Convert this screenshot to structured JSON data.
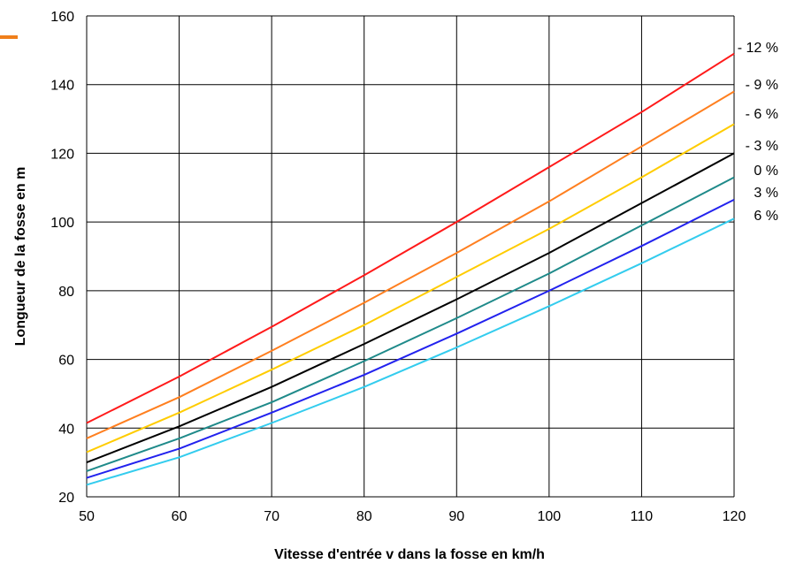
{
  "chart_data": {
    "type": "line",
    "title": "",
    "xlabel": "Vitesse d'entrée v dans la fosse en km/h",
    "ylabel": "Longueur de la fosse en m",
    "xlim": [
      50,
      120
    ],
    "ylim": [
      20,
      160
    ],
    "x_ticks": [
      "50",
      "60",
      "70",
      "80",
      "90",
      "100",
      "110",
      "120"
    ],
    "y_ticks": [
      "20",
      "40",
      "60",
      "80",
      "100",
      "120",
      "140",
      "160"
    ],
    "grid": true,
    "legend": "series labels at right end of lines",
    "x": [
      50,
      60,
      70,
      80,
      90,
      100,
      110,
      120
    ],
    "series": [
      {
        "name": "- 12 %",
        "color": "#ff1a1a",
        "values": [
          41.5,
          55,
          69.5,
          84.5,
          100,
          116,
          132,
          149
        ]
      },
      {
        "name": "- 9 %",
        "color": "#ff7f1f",
        "values": [
          37,
          49,
          62.5,
          76.5,
          91,
          106,
          122,
          138
        ]
      },
      {
        "name": "- 6 %",
        "color": "#ffcc00",
        "values": [
          33,
          44.5,
          57,
          70,
          84,
          98,
          113,
          128.5
        ]
      },
      {
        "name": "- 3 %",
        "color": "#000000",
        "values": [
          30,
          40.5,
          52,
          64.5,
          77.5,
          91,
          105.5,
          120
        ]
      },
      {
        "name": "0 %",
        "color": "#1f8a8a",
        "values": [
          27.5,
          37,
          47.5,
          59.5,
          72,
          85,
          99,
          113
        ]
      },
      {
        "name": "3 %",
        "color": "#2222ee",
        "values": [
          25.5,
          34,
          44.5,
          55.5,
          67.5,
          80,
          93,
          106.5
        ]
      },
      {
        "name": "6 %",
        "color": "#33ccee",
        "values": [
          23.5,
          31.5,
          41.5,
          52,
          63.5,
          75.5,
          88,
          101
        ]
      }
    ]
  },
  "colors": {
    "accent": "#f07f1a",
    "grid": "#000000"
  }
}
